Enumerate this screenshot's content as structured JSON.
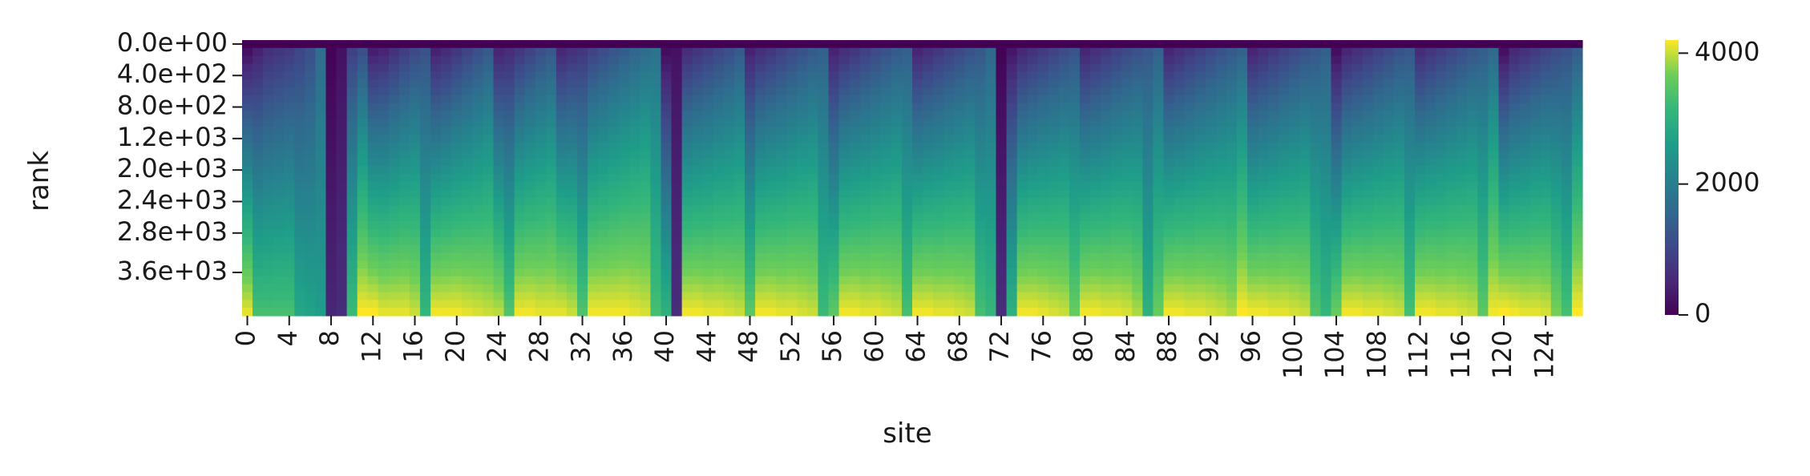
{
  "chart_data": {
    "type": "heatmap",
    "title": "",
    "xlabel": "site",
    "ylabel": "rank",
    "x_tick_labels": [
      "0",
      "4",
      "8",
      "12",
      "16",
      "20",
      "24",
      "28",
      "32",
      "36",
      "40",
      "44",
      "48",
      "52",
      "56",
      "60",
      "64",
      "68",
      "72",
      "76",
      "80",
      "84",
      "88",
      "92",
      "96",
      "100",
      "104",
      "108",
      "112",
      "116",
      "120",
      "124"
    ],
    "y_tick_labels": [
      "0.0e+00",
      "4.0e+02",
      "8.0e+02",
      "1.2e+03",
      "2.0e+03",
      "2.4e+03",
      "2.8e+03",
      "3.6e+03"
    ],
    "n_sites": 128,
    "n_rank_rows": 35,
    "colormap": "viridis",
    "colorbar": {
      "vmin": 0,
      "vmax": 4200,
      "tick_labels": [
        "0",
        "2000",
        "4000"
      ],
      "tick_values": [
        0,
        2000,
        4000
      ]
    },
    "site_start_values": [
      0,
      300,
      500,
      600,
      700,
      900,
      1100,
      1600,
      0,
      200,
      800,
      1000,
      200,
      300,
      500,
      700,
      900,
      1100,
      250,
      400,
      600,
      800,
      1000,
      1200,
      300,
      450,
      600,
      800,
      1000,
      1150,
      350,
      500,
      650,
      800,
      950,
      1100,
      1250,
      1400,
      1550,
      1700,
      0,
      200,
      400,
      550,
      700,
      850,
      1000,
      1200,
      300,
      450,
      600,
      750,
      900,
      1050,
      1200,
      1350,
      300,
      450,
      600,
      750,
      900,
      1050,
      1200,
      1350,
      300,
      450,
      600,
      750,
      900,
      1050,
      1200,
      1500,
      0,
      150,
      350,
      500,
      650,
      800,
      950,
      1100,
      300,
      450,
      600,
      750,
      900,
      1050,
      1200,
      1350,
      300,
      450,
      600,
      750,
      900,
      1050,
      1200,
      1350,
      300,
      450,
      600,
      750,
      900,
      1050,
      1200,
      1350,
      0,
      300,
      450,
      600,
      750,
      900,
      1050,
      1200,
      400,
      550,
      700,
      850,
      1000,
      1150,
      1300,
      1450,
      0,
      350,
      500,
      650,
      800,
      950,
      1100,
      1250
    ],
    "site_max_values": [
      4100,
      3300,
      3300,
      3300,
      3300,
      2800,
      2700,
      2600,
      500,
      600,
      3200,
      4200,
      4200,
      4100,
      4100,
      4100,
      4000,
      3100,
      4150,
      4150,
      4150,
      4100,
      4050,
      4000,
      3950,
      3400,
      4150,
      4150,
      4100,
      4100,
      4100,
      4000,
      3400,
      4150,
      4150,
      4150,
      4150,
      4100,
      4050,
      3300,
      3000,
      600,
      4150,
      4150,
      4100,
      4100,
      4050,
      4000,
      3500,
      4150,
      4150,
      4100,
      4100,
      4050,
      4000,
      3200,
      3500,
      4150,
      4150,
      4100,
      4100,
      4050,
      4000,
      3300,
      4150,
      4150,
      4100,
      4100,
      4050,
      4000,
      3300,
      3100,
      600,
      3000,
      4150,
      4150,
      4100,
      4050,
      4000,
      3600,
      4150,
      4150,
      4100,
      4100,
      4050,
      3900,
      3000,
      3600,
      4150,
      4150,
      4100,
      4100,
      4050,
      4000,
      3900,
      4200,
      4150,
      4150,
      4100,
      4100,
      4050,
      4000,
      3400,
      3100,
      3600,
      4150,
      4150,
      4100,
      4100,
      4050,
      4000,
      3300,
      4150,
      4150,
      4100,
      4100,
      4050,
      4000,
      3500,
      4150,
      4200,
      4150,
      4100,
      4100,
      4050,
      3700,
      3300,
      4200
    ]
  }
}
